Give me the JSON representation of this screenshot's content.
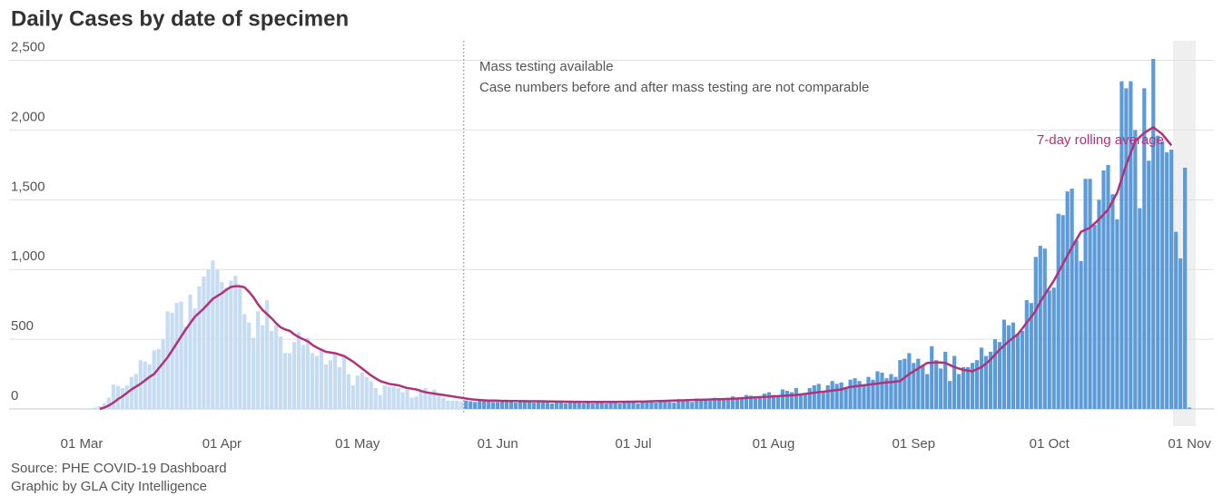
{
  "chart_data": {
    "type": "bar",
    "title": "Daily Cases by date of specimen",
    "annotations": [
      "Mass testing available",
      "Case numbers before and after mass testing are not comparable"
    ],
    "source": [
      "Source: PHE COVID-19 Dashboard",
      "Graphic by GLA City Intelligence"
    ],
    "categories": [
      "01 Mar",
      null,
      null,
      null,
      null,
      null,
      null,
      null,
      null,
      null,
      null,
      null,
      null,
      null,
      null,
      null,
      null,
      null,
      null,
      null,
      null,
      null,
      null,
      null,
      null,
      null,
      null,
      null,
      null,
      null,
      null,
      "01 Apr",
      null,
      null,
      null,
      null,
      null,
      null,
      null,
      null,
      null,
      null,
      null,
      null,
      null,
      null,
      null,
      null,
      null,
      null,
      null,
      null,
      null,
      null,
      null,
      null,
      null,
      null,
      null,
      null,
      null,
      "01 May",
      null,
      null,
      null,
      null,
      null,
      null,
      null,
      null,
      null,
      null,
      null,
      null,
      null,
      null,
      null,
      null,
      null,
      null,
      null,
      null,
      null,
      null,
      null,
      null,
      null,
      null,
      null,
      null,
      null,
      null,
      "01 Jun",
      null,
      null,
      null,
      null,
      null,
      null,
      null,
      null,
      null,
      null,
      null,
      null,
      null,
      null,
      null,
      null,
      null,
      null,
      null,
      null,
      null,
      null,
      null,
      null,
      null,
      null,
      null,
      null,
      null,
      "01 Jul",
      null,
      null,
      null,
      null,
      null,
      null,
      null,
      null,
      null,
      null,
      null,
      null,
      null,
      null,
      null,
      null,
      null,
      null,
      null,
      null,
      null,
      null,
      null,
      null,
      null,
      null,
      null,
      null,
      null,
      null,
      "01 Aug",
      null,
      null,
      null,
      null,
      null,
      null,
      null,
      null,
      null,
      null,
      null,
      null,
      null,
      null,
      null,
      null,
      null,
      null,
      null,
      null,
      null,
      null,
      null,
      null,
      null,
      null,
      null,
      null,
      null,
      null,
      "01 Sep",
      null,
      null,
      null,
      null,
      null,
      null,
      null,
      null,
      null,
      null,
      null,
      null,
      null,
      null,
      null,
      null,
      null,
      null,
      null,
      null,
      null,
      null,
      null,
      null,
      null,
      null,
      null,
      null,
      null,
      "01 Oct",
      null,
      null,
      null,
      null,
      null,
      null,
      null,
      null,
      null,
      null,
      null,
      null,
      null,
      null,
      null,
      null,
      null,
      null,
      null,
      null,
      null,
      null,
      null,
      null,
      null,
      null,
      null,
      null,
      null,
      null,
      "01 Nov"
    ],
    "series": [
      {
        "color": "#c6dcf2",
        "values": [
          3,
          3,
          5,
          10,
          20,
          40,
          80,
          175,
          165,
          150,
          170,
          230,
          250,
          350,
          340,
          320,
          420,
          430,
          500,
          700,
          690,
          760,
          770,
          590,
          820,
          720,
          880,
          950,
          1000,
          1065,
          1000,
          910,
          870,
          920,
          955,
          880,
          680,
          620,
          510,
          700,
          600,
          780,
          560,
          600,
          520,
          400,
          400,
          480,
          550,
          460,
          510,
          400,
          380,
          420,
          320,
          350,
          400,
          300,
          380,
          250,
          170,
          240,
          260,
          230,
          200,
          150,
          100,
          170,
          160,
          160,
          150,
          120,
          140,
          80,
          90,
          130,
          150,
          110,
          140,
          100,
          80,
          60,
          60,
          60,
          55,
          null,
          null,
          null,
          null,
          null,
          null,
          null,
          null,
          null,
          null,
          null,
          null,
          null,
          null,
          null,
          null,
          null,
          null,
          null,
          null,
          null,
          null,
          null,
          null,
          null,
          null,
          null,
          null,
          null,
          null,
          null,
          null,
          null,
          null,
          null,
          null,
          null,
          null,
          null,
          null,
          null,
          null,
          null,
          null,
          null,
          null,
          null,
          null,
          null,
          null,
          null,
          null,
          null,
          null,
          null,
          null,
          null,
          null,
          null,
          null,
          null,
          null,
          null,
          null,
          null,
          null,
          null,
          null,
          null,
          null,
          null,
          null,
          null,
          null,
          null,
          null,
          null,
          null,
          null,
          null,
          null,
          null,
          null,
          null,
          null,
          null,
          null,
          null,
          null,
          null,
          null,
          null,
          null,
          null,
          null,
          null,
          null,
          null,
          null,
          null,
          null,
          null,
          null,
          null,
          null,
          null,
          null,
          null,
          null,
          null,
          null,
          null,
          null,
          null,
          null,
          null,
          null,
          null,
          null,
          null,
          null,
          null,
          null,
          null,
          null,
          null,
          null,
          null,
          null,
          null,
          null,
          null,
          null,
          null,
          null,
          null,
          null,
          null,
          null,
          null,
          null,
          null,
          null,
          null,
          null,
          null,
          null,
          null,
          null,
          null,
          null,
          null,
          null,
          null,
          null,
          null,
          null,
          null,
          null,
          null,
          null
        ]
      },
      {
        "color": "#5d9bd8",
        "values": [
          null,
          null,
          null,
          null,
          null,
          null,
          null,
          null,
          null,
          null,
          null,
          null,
          null,
          null,
          null,
          null,
          null,
          null,
          null,
          null,
          null,
          null,
          null,
          null,
          null,
          null,
          null,
          null,
          null,
          null,
          null,
          null,
          null,
          null,
          null,
          null,
          null,
          null,
          null,
          null,
          null,
          null,
          null,
          null,
          null,
          null,
          null,
          null,
          null,
          null,
          null,
          null,
          null,
          null,
          null,
          null,
          null,
          null,
          null,
          null,
          null,
          null,
          null,
          null,
          null,
          null,
          null,
          null,
          null,
          null,
          null,
          null,
          null,
          null,
          null,
          null,
          null,
          null,
          null,
          null,
          null,
          null,
          null,
          null,
          null,
          60,
          55,
          50,
          60,
          65,
          55,
          50,
          50,
          55,
          60,
          50,
          45,
          50,
          55,
          50,
          45,
          55,
          50,
          45,
          40,
          45,
          50,
          40,
          45,
          50,
          45,
          40,
          45,
          40,
          50,
          45,
          40,
          50,
          45,
          40,
          45,
          45,
          50,
          40,
          55,
          60,
          50,
          45,
          55,
          60,
          50,
          45,
          70,
          60,
          55,
          50,
          75,
          65,
          70,
          60,
          80,
          70,
          75,
          65,
          90,
          80,
          85,
          100,
          95,
          90,
          80,
          110,
          120,
          100,
          90,
          140,
          130,
          120,
          150,
          100,
          110,
          150,
          170,
          180,
          130,
          170,
          200,
          180,
          190,
          150,
          210,
          220,
          200,
          170,
          230,
          210,
          270,
          260,
          220,
          250,
          230,
          350,
          360,
          400,
          330,
          360,
          310,
          250,
          450,
          350,
          290,
          410,
          200,
          380,
          250,
          300,
          300,
          330,
          350,
          440,
          380,
          410,
          500,
          480,
          640,
          600,
          620,
          540,
          560,
          780,
          760,
          1090,
          1170,
          1150,
          850,
          870,
          1400,
          1390,
          1560,
          1580,
          1210,
          1060,
          1650,
          1650,
          1320,
          1500,
          1710,
          1750,
          1540,
          1360,
          2350,
          2300,
          2350,
          2000,
          1440,
          2300,
          1780,
          2510,
          1960,
          1920,
          1840,
          1860,
          1270,
          1080,
          1730,
          10
        ]
      },
      {
        "type": "line",
        "name": "7-day rolling average",
        "color": "#b2317a",
        "values": [
          null,
          null,
          null,
          null,
          0,
          10,
          25,
          45,
          70,
          90,
          115,
          140,
          160,
          180,
          205,
          230,
          250,
          290,
          330,
          370,
          420,
          470,
          520,
          570,
          615,
          660,
          690,
          720,
          755,
          790,
          810,
          830,
          855,
          875,
          880,
          880,
          872,
          840,
          800,
          750,
          710,
          680,
          650,
          615,
          585,
          570,
          560,
          535,
          515,
          500,
          485,
          460,
          440,
          425,
          410,
          405,
          400,
          390,
          380,
          360,
          340,
          315,
          290,
          265,
          240,
          220,
          200,
          190,
          180,
          175,
          170,
          160,
          150,
          145,
          140,
          130,
          120,
          115,
          110,
          105,
          100,
          95,
          90,
          85,
          80,
          75,
          70,
          67,
          64,
          62,
          60,
          60,
          59,
          58,
          58,
          57,
          57,
          56,
          56,
          55,
          55,
          55,
          55,
          54,
          54,
          53,
          53,
          52,
          52,
          51,
          51,
          50,
          50,
          50,
          50,
          50,
          50,
          50,
          50,
          51,
          51,
          52,
          52,
          53,
          53,
          54,
          55,
          56,
          57,
          58,
          59,
          60,
          61,
          62,
          63,
          64,
          65,
          66,
          67,
          68,
          69,
          70,
          71,
          72,
          73,
          75,
          77,
          79,
          81,
          83,
          85,
          87,
          88,
          90,
          92,
          94,
          96,
          98,
          100,
          104,
          108,
          112,
          116,
          120,
          124,
          128,
          132,
          136,
          140,
          150,
          158,
          162,
          166,
          170,
          174,
          178,
          182,
          186,
          190,
          193,
          196,
          200,
          225,
          250,
          270,
          290,
          310,
          330,
          332,
          334,
          333,
          330,
          315,
          300,
          290,
          280,
          275,
          270,
          285,
          300,
          325,
          355,
          390,
          425,
          455,
          485,
          510,
          535,
          575,
          620,
          660,
          705,
          770,
          820,
          870,
          920,
          980,
          1040,
          1100,
          1160,
          1215,
          1270,
          1285,
          1300,
          1330,
          1360,
          1395,
          1430,
          1490,
          1550,
          1650,
          1750,
          1835,
          1920,
          1950,
          1980,
          2000,
          2020,
          1995,
          1970,
          1930,
          1890,
          null,
          null,
          null,
          null
        ]
      }
    ],
    "ylim": [
      0,
      2640
    ],
    "yticks": [
      0,
      500,
      {
        "value": 1000,
        "label": "1,000"
      },
      {
        "value": 1500,
        "label": "1,500"
      },
      {
        "value": 2000,
        "label": "2,000"
      },
      {
        "value": 2500,
        "label": "2,500"
      }
    ],
    "grid": true
  }
}
